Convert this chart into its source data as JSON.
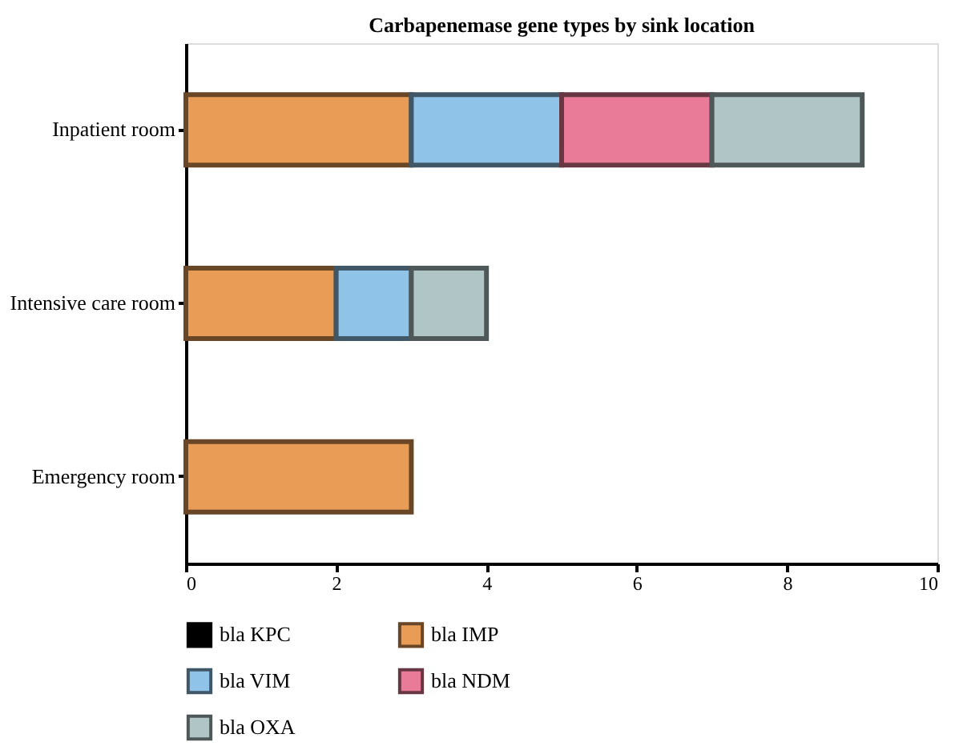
{
  "chart_data": {
    "type": "bar",
    "orientation": "horizontal",
    "stacked": true,
    "title": "Carbapenemase gene types by sink location",
    "categories": [
      "Inpatient room",
      "Intensive care room",
      "Emergency room"
    ],
    "series": [
      {
        "name": "bla KPC",
        "color": "#000000",
        "values": [
          0,
          0,
          0
        ]
      },
      {
        "name": "bla IMP",
        "color": "#e89c55",
        "values": [
          3,
          2,
          3
        ]
      },
      {
        "name": "bla VIM",
        "color": "#90c3e8",
        "values": [
          2,
          1,
          0
        ]
      },
      {
        "name": "bla NDM",
        "color": "#e97b98",
        "values": [
          2,
          0,
          0
        ]
      },
      {
        "name": "bla OXA",
        "color": "#b0c5c6",
        "values": [
          2,
          1,
          0
        ]
      }
    ],
    "xlim": [
      0,
      10
    ],
    "xticks": [
      0,
      2,
      4,
      6,
      8,
      10
    ],
    "grid": false,
    "legend": "bottom"
  }
}
